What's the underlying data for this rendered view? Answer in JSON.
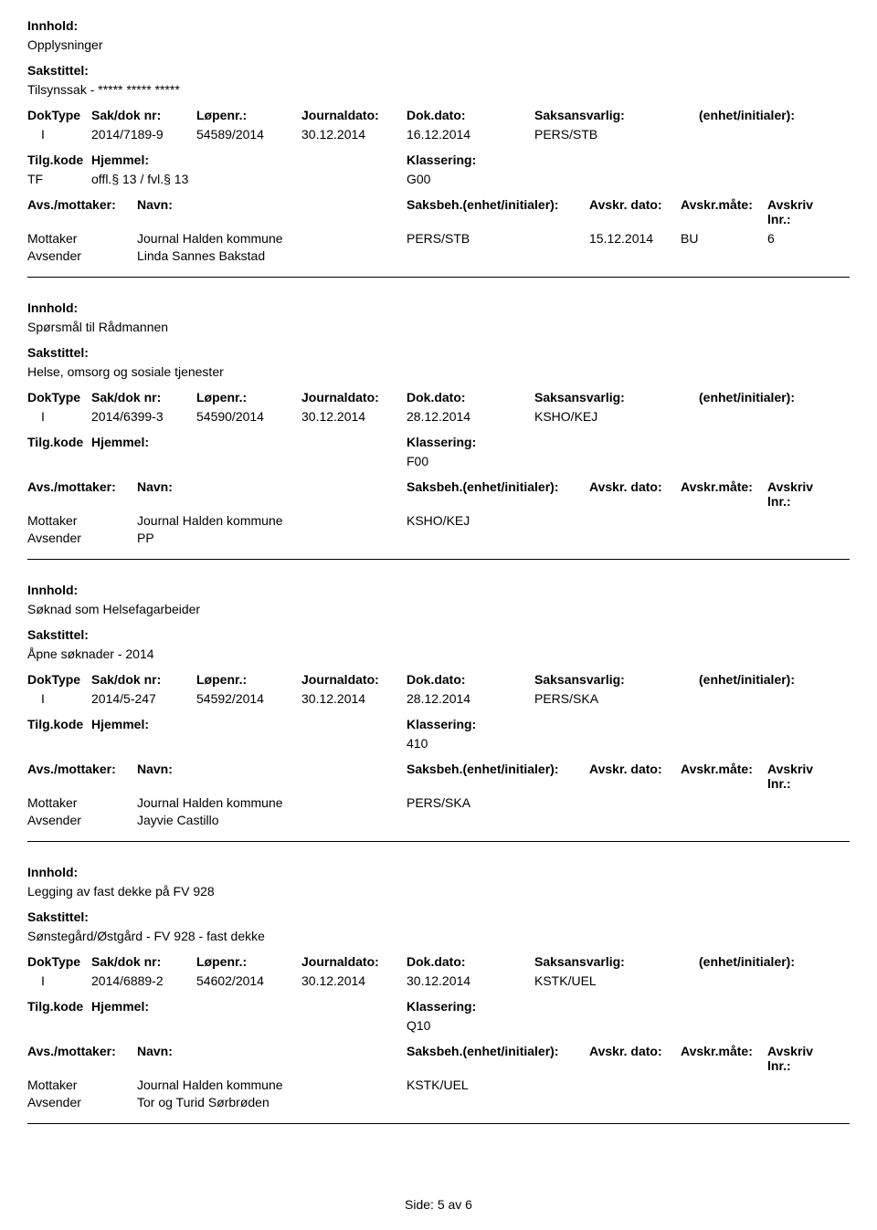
{
  "labels": {
    "innhold": "Innhold:",
    "sakstittel": "Sakstittel:",
    "doktype": "DokType",
    "sakdok": "Sak/dok nr:",
    "lopenr": "Løpenr.:",
    "journaldato": "Journaldato:",
    "dokdato": "Dok.dato:",
    "saksansvarlig": "Saksansvarlig:",
    "enhet": "(enhet/initialer):",
    "tilgkode": "Tilg.kode",
    "hjemmel": "Hjemmel:",
    "klassering": "Klassering:",
    "avsmottaker": "Avs./mottaker:",
    "navn": "Navn:",
    "saksbeh": "Saksbeh.(enhet/initialer):",
    "avskrdato": "Avskr. dato:",
    "avskrmate": "Avskr.måte:",
    "avskrivlnr": "Avskriv lnr.:",
    "mottaker": "Mottaker",
    "avsender": "Avsender"
  },
  "entries": [
    {
      "innhold": "Opplysninger",
      "sakstittel": "Tilsynssak - ***** ***** *****",
      "doktype": "I",
      "sakdok": "2014/7189-9",
      "lopenr": "54589/2014",
      "journaldato": "30.12.2014",
      "dokdato": "16.12.2014",
      "saksansvarlig": "PERS/STB",
      "tilgkode": "TF",
      "hjemmel": "offl.§ 13 / fvl.§ 13",
      "klassering": "G00",
      "mottaker_navn": "Journal Halden kommune",
      "saksbeh": "PERS/STB",
      "avskrdato": "15.12.2014",
      "avskrmate": "BU",
      "avskrivlnr": "6",
      "avsender_navn": "Linda Sannes Bakstad"
    },
    {
      "innhold": "Spørsmål til Rådmannen",
      "sakstittel": "Helse, omsorg og sosiale tjenester",
      "doktype": "I",
      "sakdok": "2014/6399-3",
      "lopenr": "54590/2014",
      "journaldato": "30.12.2014",
      "dokdato": "28.12.2014",
      "saksansvarlig": "KSHO/KEJ",
      "tilgkode": "",
      "hjemmel": "",
      "klassering": "F00",
      "mottaker_navn": "Journal Halden kommune",
      "saksbeh": "KSHO/KEJ",
      "avskrdato": "",
      "avskrmate": "",
      "avskrivlnr": "",
      "avsender_navn": "PP"
    },
    {
      "innhold": "Søknad som Helsefagarbeider",
      "sakstittel": "Åpne søknader - 2014",
      "doktype": "I",
      "sakdok": "2014/5-247",
      "lopenr": "54592/2014",
      "journaldato": "30.12.2014",
      "dokdato": "28.12.2014",
      "saksansvarlig": "PERS/SKA",
      "tilgkode": "",
      "hjemmel": "",
      "klassering": "410",
      "mottaker_navn": "Journal Halden kommune",
      "saksbeh": "PERS/SKA",
      "avskrdato": "",
      "avskrmate": "",
      "avskrivlnr": "",
      "avsender_navn": "Jayvie Castillo"
    },
    {
      "innhold": "Legging av fast dekke på FV 928",
      "sakstittel": "Sønstegård/Østgård - FV 928 - fast dekke",
      "doktype": "I",
      "sakdok": "2014/6889-2",
      "lopenr": "54602/2014",
      "journaldato": "30.12.2014",
      "dokdato": "30.12.2014",
      "saksansvarlig": "KSTK/UEL",
      "tilgkode": "",
      "hjemmel": "",
      "klassering": "Q10",
      "mottaker_navn": "Journal Halden kommune",
      "saksbeh": "KSTK/UEL",
      "avskrdato": "",
      "avskrmate": "",
      "avskrivlnr": "",
      "avsender_navn": "Tor og Turid Sørbrøden"
    }
  ],
  "footer": "Side: 5 av 6"
}
